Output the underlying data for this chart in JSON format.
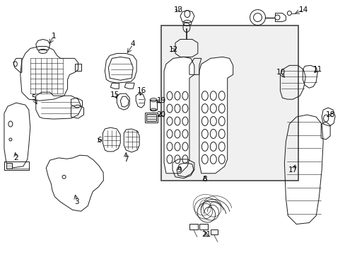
{
  "background_color": "#ffffff",
  "line_color": "#1a1a1a",
  "text_color": "#000000",
  "figsize": [
    4.89,
    3.6
  ],
  "dpi": 100,
  "box_color": "#e8e8e8",
  "label_fs": 7.5
}
